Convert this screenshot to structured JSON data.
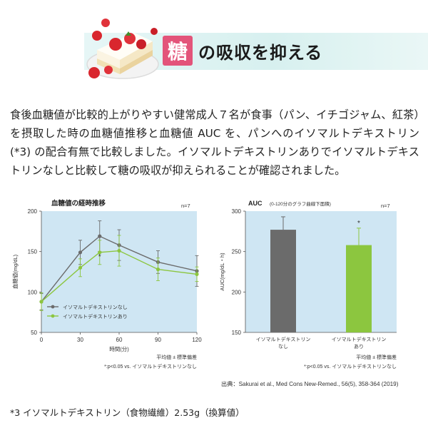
{
  "banner": {
    "kanji": "糖",
    "title": "の吸収を抑える",
    "colors": {
      "kanji_bg": "#e3547a",
      "band": "#d7f0ef"
    }
  },
  "intro": {
    "text": "食後血糖値が比較的上がりやすい健常成人７名が食事（パン、イチゴジャム、紅茶）を摂取した時の血糖値推移と血糖値 AUC を、パンへのイソマルトデキストリン (*3) の配合有無で比較しました。イソマルトデキストリンありでイソマルトデキストリンなしと比較して糖の吸収が抑えられることが確認されました。"
  },
  "citation": "出典：Sakurai et al., Med Cons New-Remed., 56(5), 358-364 (2019)",
  "footnote": "*3 イソマルトデキストリン（食物繊維）2.53g（換算値）",
  "chart_data": [
    {
      "type": "line",
      "title": "血糖値の経時推移",
      "n_label": "n=7",
      "xlabel": "時間(分)",
      "ylabel": "血糖値(mg/dL)",
      "xlim": [
        0,
        120
      ],
      "ylim": [
        50,
        200
      ],
      "x_ticks": [
        0,
        30,
        60,
        90,
        120
      ],
      "y_ticks": [
        50,
        100,
        150,
        200
      ],
      "x": [
        0,
        30,
        45,
        60,
        90,
        120
      ],
      "series": [
        {
          "name": "イソマルトデキストリンなし",
          "color": "#6b6b6b",
          "values": [
            88,
            149,
            169,
            158,
            137,
            126
          ],
          "errors": [
            10,
            15,
            19,
            19,
            14,
            19
          ]
        },
        {
          "name": "イソマルトデキストリンあり",
          "color": "#8cc63f",
          "values": [
            88,
            130,
            149,
            151,
            128,
            122
          ],
          "errors": [
            11,
            11,
            15,
            19,
            14,
            9
          ]
        }
      ],
      "star_label": "*",
      "star_x": 45,
      "star_y": 141,
      "legend_position": "lower-left",
      "note_mean": "平均値 ± 標準偏差",
      "note_sig": "*:p<0.05 vs. イソマルトデキストリンなし",
      "plot_bg": "#cfe6f3",
      "grid": false
    },
    {
      "type": "bar",
      "title": "AUC",
      "subtitle": "(0-120分のグラフ曲線下面積)",
      "n_label": "n=7",
      "ylabel": "AUC(mg/dL・h)",
      "ylim": [
        150,
        300
      ],
      "y_ticks": [
        150,
        200,
        250,
        300
      ],
      "categories": [
        "イソマルトデキストリン\nなし",
        "イソマルトデキストリン\nあり"
      ],
      "values": [
        277,
        258
      ],
      "errors": [
        16,
        21
      ],
      "colors": [
        "#6b6b6b",
        "#8cc63f"
      ],
      "star_label": "*",
      "note_mean": "平均値 ± 標準偏差",
      "note_sig": "*:p<0.05 vs. イソマルトデキストリンなし",
      "plot_bg": "#cfe6f3",
      "grid": false
    }
  ]
}
